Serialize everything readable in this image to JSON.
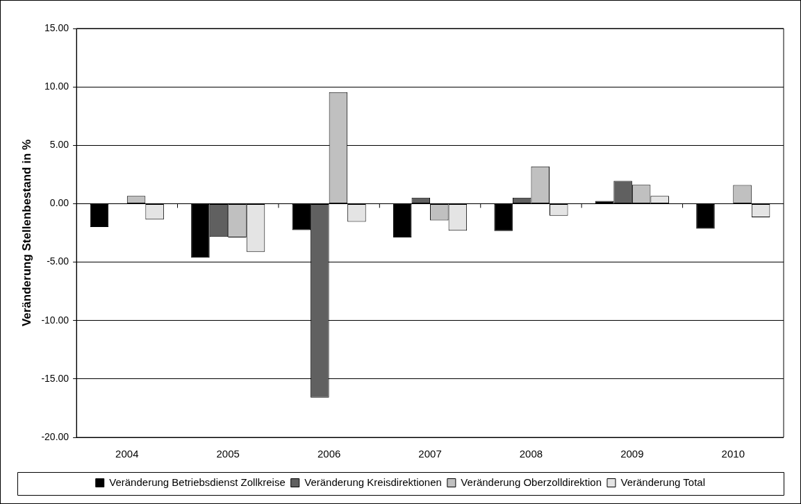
{
  "chart_data": {
    "type": "bar",
    "ylabel": "Veränderung Stellenbestand in %",
    "categories": [
      "2004",
      "2005",
      "2006",
      "2007",
      "2008",
      "2009",
      "2010"
    ],
    "series": [
      {
        "name": "Veränderung Betriebsdienst Zollkreise",
        "color": "#000000",
        "values": [
          -2.0,
          -4.62,
          -2.26,
          -2.88,
          -2.33,
          0.24,
          -2.14
        ]
      },
      {
        "name": "Veränderung Kreisdirektionen",
        "color": "#606060",
        "values": [
          null,
          -2.84,
          -16.6,
          0.52,
          0.52,
          1.95,
          null
        ]
      },
      {
        "name": "Veränderung Oberzolldirektion",
        "color": "#c0c0c0",
        "values": [
          0.66,
          -2.88,
          9.55,
          -1.43,
          3.19,
          1.62,
          1.6
        ]
      },
      {
        "name": "Veränderung Total",
        "color": "#e4e4e4",
        "values": [
          -1.36,
          -4.12,
          -1.55,
          -2.31,
          -1.03,
          0.67,
          -1.17
        ]
      }
    ],
    "ylim": [
      -20,
      15
    ],
    "yticks": [
      {
        "value": -20,
        "label": "-20.00"
      },
      {
        "value": -15,
        "label": "-15.00"
      },
      {
        "value": -10,
        "label": "-10.00"
      },
      {
        "value": -5,
        "label": "-5.00"
      },
      {
        "value": 0,
        "label": "0.00"
      },
      {
        "value": 5,
        "label": "5.00"
      },
      {
        "value": 10,
        "label": "10.00"
      },
      {
        "value": 15,
        "label": "15.00"
      }
    ],
    "grid": "y",
    "legend": "bottom"
  }
}
